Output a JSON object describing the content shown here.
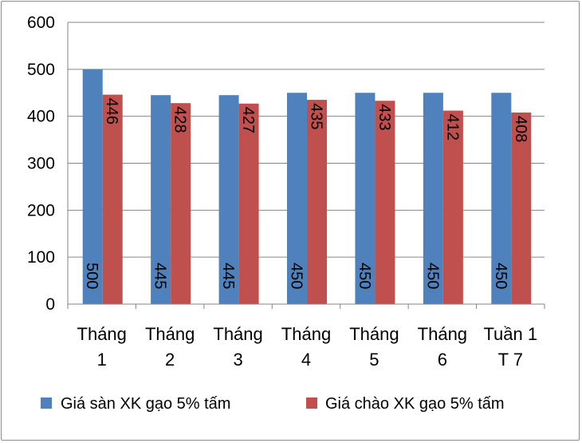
{
  "chart_data": {
    "type": "bar",
    "title": "",
    "xlabel": "",
    "ylabel": "",
    "ylim": [
      0,
      600
    ],
    "yticks": [
      0,
      100,
      200,
      300,
      400,
      500,
      600
    ],
    "grid": true,
    "legend_position": "bottom",
    "categories": [
      [
        "Tháng",
        "1"
      ],
      [
        "Tháng",
        "2"
      ],
      [
        "Tháng",
        "3"
      ],
      [
        "Tháng",
        "4"
      ],
      [
        "Tháng",
        "5"
      ],
      [
        "Tháng",
        "6"
      ],
      [
        "Tuần 1",
        "T 7"
      ]
    ],
    "series": [
      {
        "name": "Giá sàn XK gạo 5% tấm",
        "color": "#4f81bd",
        "values": [
          500,
          445,
          445,
          450,
          450,
          450,
          450
        ]
      },
      {
        "name": "Giá chào XK gạo 5% tấm",
        "color": "#c0504d",
        "values": [
          446,
          428,
          427,
          435,
          433,
          412,
          408
        ]
      }
    ]
  }
}
